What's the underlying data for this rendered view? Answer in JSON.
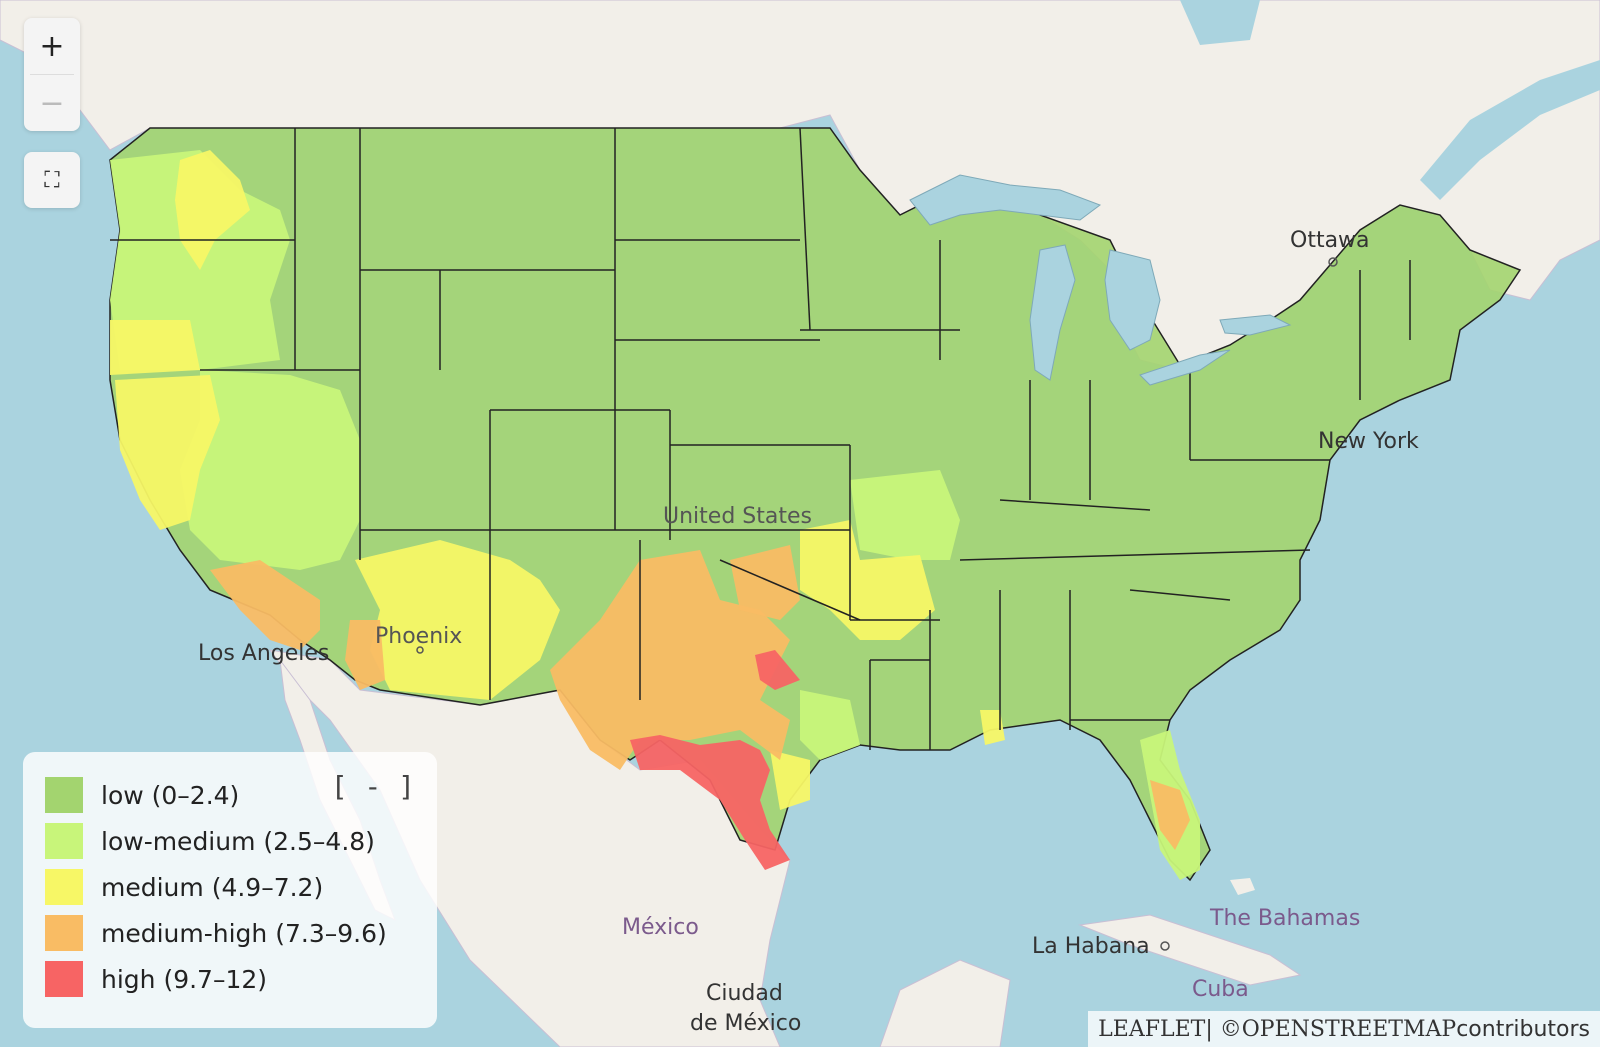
{
  "controls": {
    "zoom_in": "+",
    "zoom_out": "−",
    "fullscreen": "⛶"
  },
  "map_labels": {
    "ottawa": "Ottawa",
    "new_york": "New York",
    "united_states": "United States",
    "phoenix": "Phoenix",
    "los_angeles": "Los Angeles",
    "mexico": "México",
    "ciudad_de_mexico_1": "Ciudad",
    "ciudad_de_mexico_2": "de México",
    "la_habana": "La Habana",
    "bahamas": "The Bahamas",
    "cuba": "Cuba"
  },
  "legend": {
    "toggle": "[ - ]",
    "items": [
      {
        "label": "low (0–2.4)",
        "color": "#a3d46f"
      },
      {
        "label": "low-medium (2.5–4.8)",
        "color": "#c8f57a"
      },
      {
        "label": "medium (4.9–7.2)",
        "color": "#f7f766"
      },
      {
        "label": "medium-high (7.3–9.6)",
        "color": "#f9bc64"
      },
      {
        "label": "high (9.7–12)",
        "color": "#f76464"
      }
    ]
  },
  "attribution": {
    "leaflet": "LEAFLET",
    "separator": " | © ",
    "osm": "OPENSTREETMAP",
    "suffix": " contributors"
  },
  "colors": {
    "water": "#aad3df",
    "land": "#f2efe9",
    "low": "#a3d46f",
    "low_medium": "#c8f57a",
    "medium": "#f7f766",
    "medium_high": "#f9bc64",
    "high": "#f76464"
  }
}
